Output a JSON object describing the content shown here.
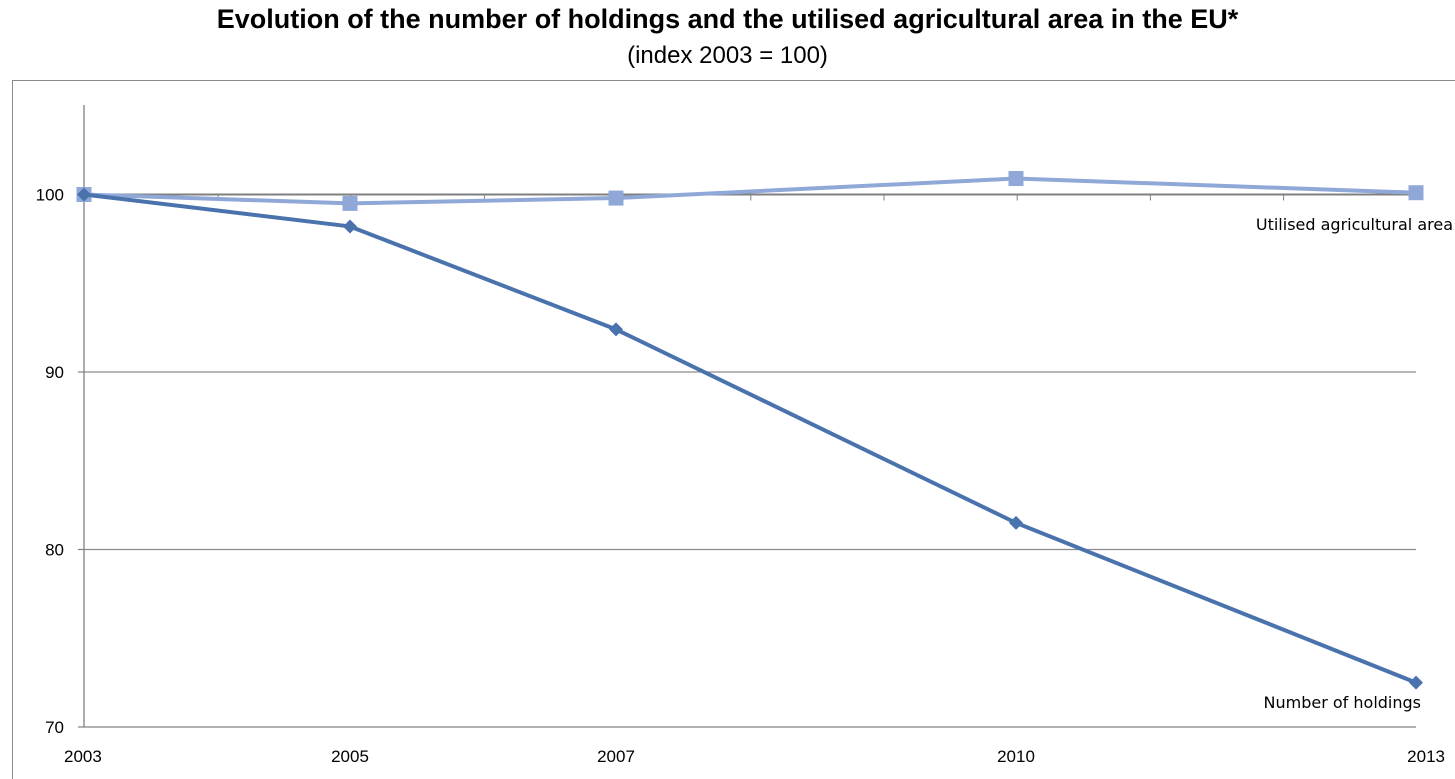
{
  "chart_data": {
    "type": "line",
    "title": "Evolution of the number of holdings and the utilised agricultural area in the EU*",
    "subtitle": "(index 2003 = 100)",
    "x": [
      2003,
      2005,
      2007,
      2010,
      2013
    ],
    "x_tick_labels": [
      "2003",
      "2005",
      "2007",
      "2010",
      "2013"
    ],
    "y_ticks": [
      70,
      80,
      90,
      100
    ],
    "y_tick_labels": [
      "70",
      "80",
      "90",
      "100"
    ],
    "ylim": [
      70,
      105
    ],
    "grid": "horizontal",
    "legend": "none (series labelled inline at line ends)",
    "series": [
      {
        "name": "Utilised agricultural area",
        "values": [
          100,
          99.5,
          99.8,
          100.9,
          100.1
        ],
        "color": "#8fa8d8",
        "marker": "square"
      },
      {
        "name": "Number of holdings",
        "values": [
          100,
          98.2,
          92.4,
          81.5,
          72.5
        ],
        "color": "#4a72ad",
        "marker": "diamond"
      }
    ]
  }
}
